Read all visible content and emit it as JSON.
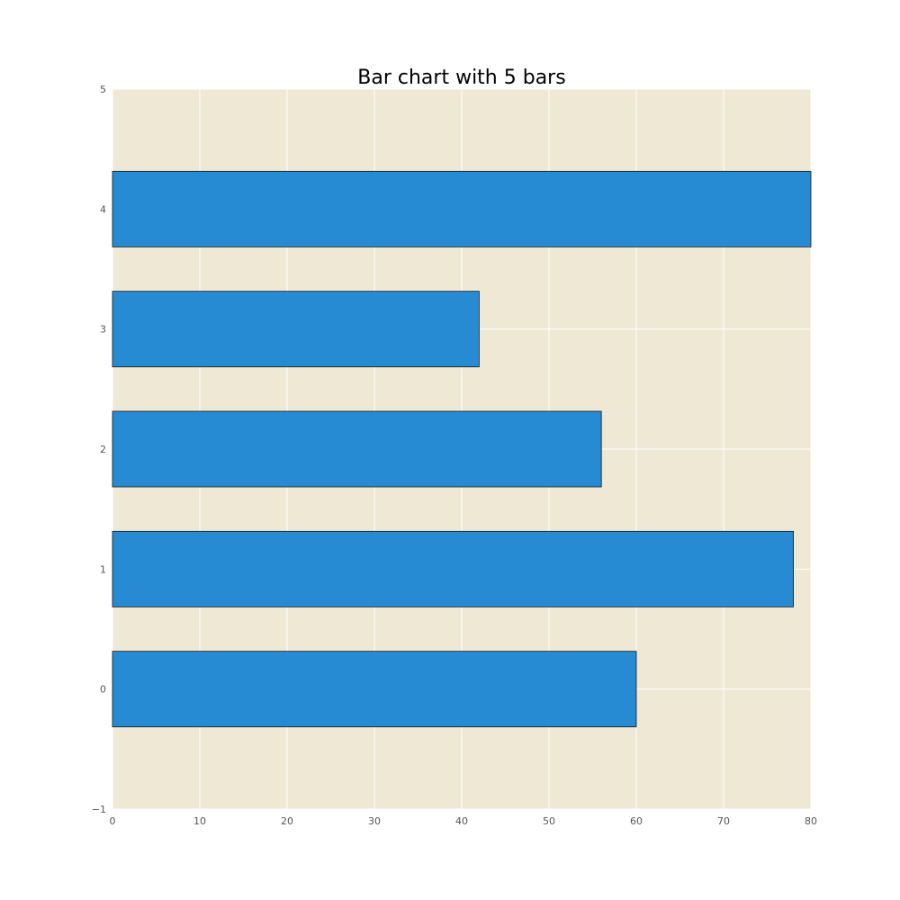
{
  "chart_data": {
    "type": "bar",
    "orientation": "horizontal",
    "title": "Bar chart with 5 bars",
    "xlabel": "",
    "ylabel": "",
    "categories": [
      "0",
      "1",
      "2",
      "3",
      "4"
    ],
    "values": [
      60,
      78,
      56,
      42,
      80
    ],
    "xlim": [
      0,
      80
    ],
    "ylim": [
      -1,
      5
    ],
    "xticks": [
      "0",
      "10",
      "20",
      "30",
      "40",
      "50",
      "60",
      "70",
      "80"
    ],
    "yticks": [
      "−1",
      "0",
      "1",
      "2",
      "3",
      "4",
      "5"
    ],
    "grid": true,
    "colors": {
      "bar": "#268bd2",
      "bar_edge": "#1a1a1a",
      "plot_background": "#eee8d5",
      "grid": "#ffffff",
      "figure_background": "#ffffff"
    }
  }
}
